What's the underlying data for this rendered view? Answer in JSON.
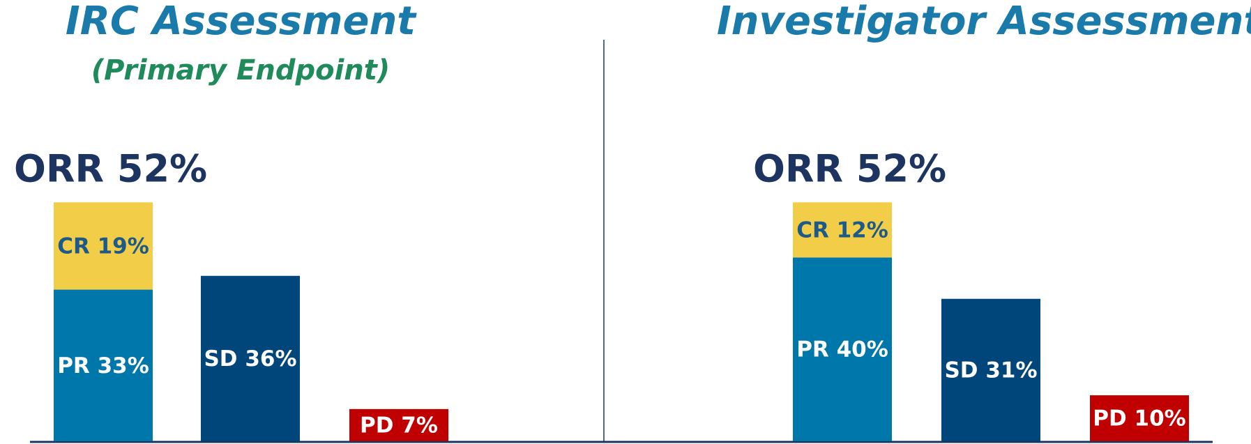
{
  "chart_data": [
    {
      "type": "bar",
      "stacked": true,
      "title": "IRC Assessment",
      "subtitle": "(Primary Endpoint)",
      "annotation": "ORR 52%",
      "categories": [
        null,
        null,
        null
      ],
      "series": [
        {
          "color": "#0077aa",
          "values": [
            33,
            null,
            null
          ],
          "value_labels": [
            "PR 33%",
            null,
            null
          ]
        },
        {
          "color": "#f2cd47",
          "values": [
            19,
            null,
            null
          ],
          "value_labels": [
            "CR 19%",
            null,
            null
          ]
        },
        {
          "color": "#00467a",
          "values": [
            null,
            36,
            null
          ],
          "value_labels": [
            null,
            "SD 36%",
            null
          ]
        },
        {
          "color": "#c00000",
          "values": [
            null,
            null,
            7
          ],
          "value_labels": [
            null,
            null,
            "PD 7%"
          ]
        }
      ]
    },
    {
      "type": "bar",
      "stacked": true,
      "title": "Investigator Assessment",
      "annotation": "ORR 52%",
      "categories": [
        null,
        null,
        null
      ],
      "series": [
        {
          "color": "#0077aa",
          "values": [
            40,
            null,
            null
          ],
          "value_labels": [
            "PR 40%",
            null,
            null
          ]
        },
        {
          "color": "#f2cd47",
          "values": [
            12,
            null,
            null
          ],
          "value_labels": [
            "CR 12%",
            null,
            null
          ]
        },
        {
          "color": "#00467a",
          "values": [
            null,
            31,
            null
          ],
          "value_labels": [
            null,
            "SD 31%",
            null
          ]
        },
        {
          "color": "#c00000",
          "values": [
            null,
            null,
            10
          ],
          "value_labels": [
            null,
            null,
            "PD 10%"
          ]
        }
      ]
    }
  ]
}
